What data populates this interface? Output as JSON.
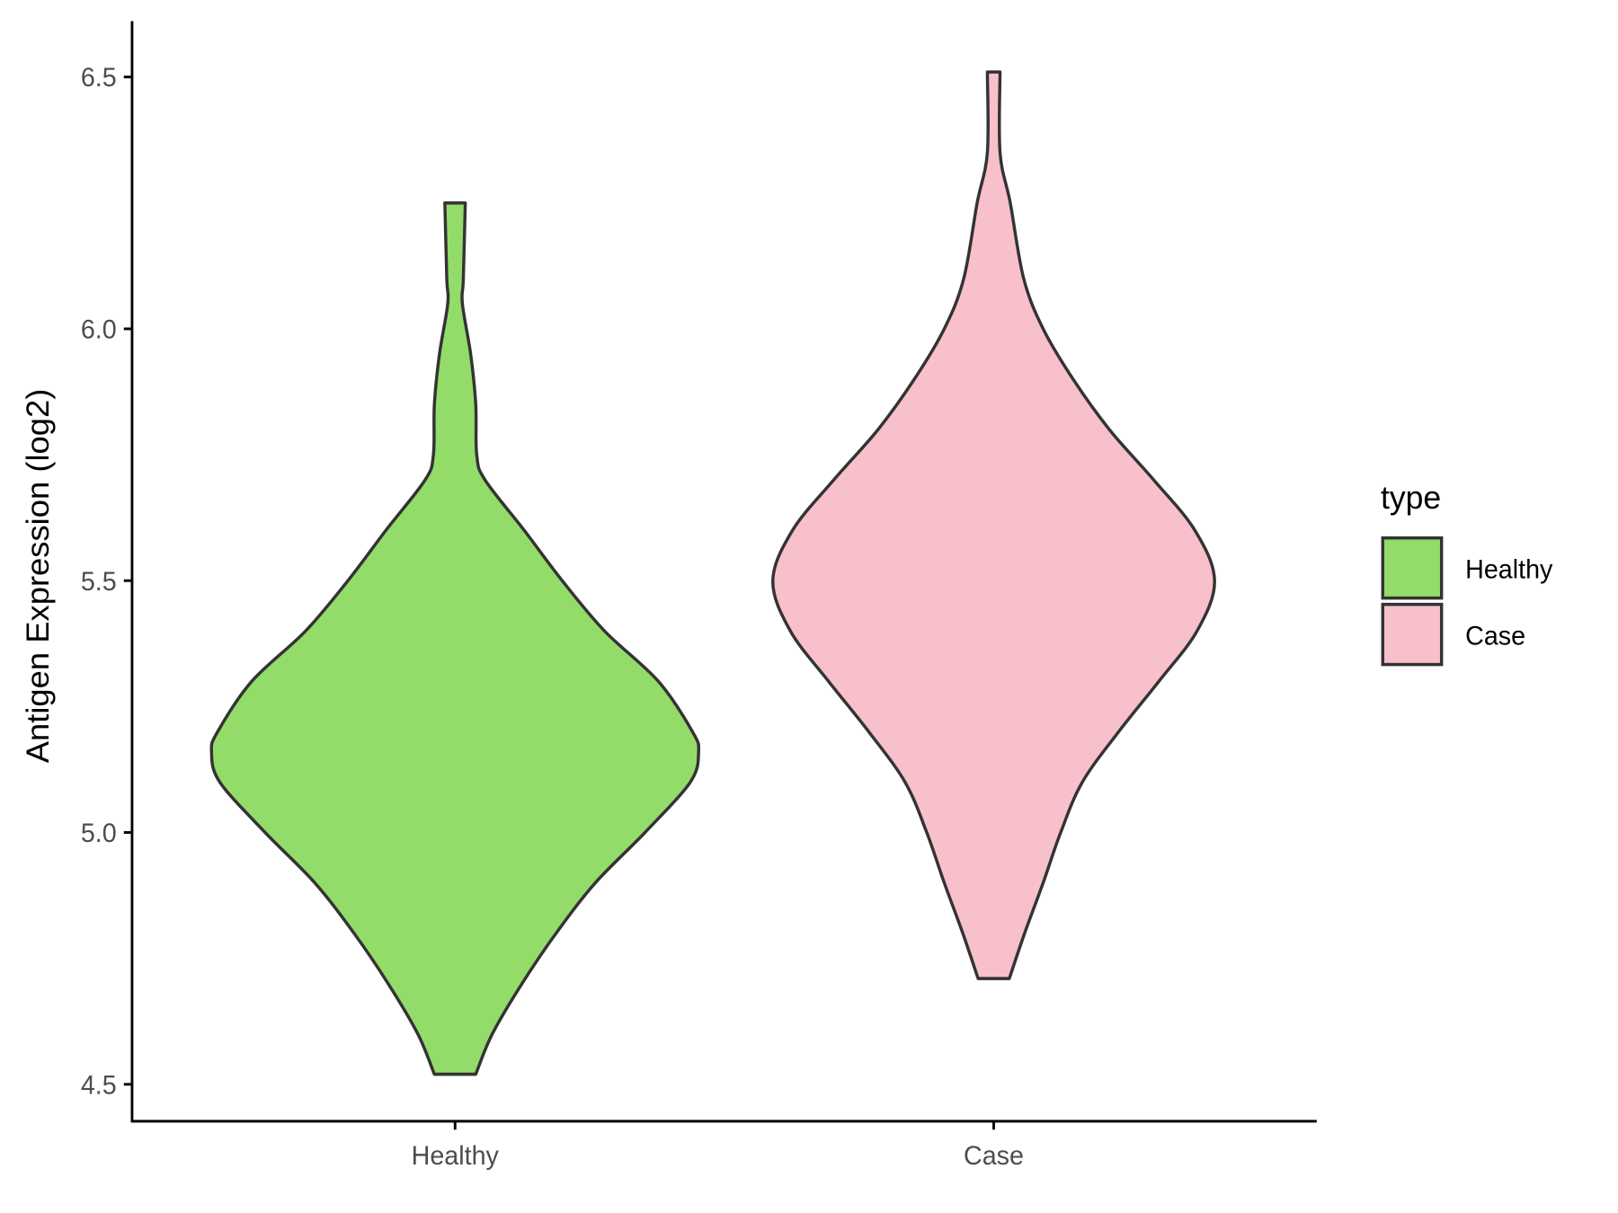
{
  "chart_data": {
    "type": "violin",
    "title": "",
    "xlabel": "",
    "ylabel": "Antigen Expression (log2)",
    "ylim": [
      4.43,
      6.62
    ],
    "yticks": [
      4.5,
      5.0,
      5.5,
      6.0,
      6.5
    ],
    "ytick_labels": [
      "4.5",
      "5.0",
      "5.5",
      "6.0",
      "6.5"
    ],
    "categories": [
      "Healthy",
      "Case"
    ],
    "grid": false,
    "legend": {
      "title": "type",
      "placement": "right",
      "entries": [
        "Healthy",
        "Case"
      ]
    },
    "series": [
      {
        "name": "Healthy",
        "color": "#93DC6A",
        "min": 4.52,
        "max": 6.25,
        "profile_note_units": "y in log2 expression, w = relative half-width (max 1)",
        "profile": [
          [
            6.25,
            0.042
          ],
          [
            6.1,
            0.034
          ],
          [
            6.05,
            0.03
          ],
          [
            5.95,
            0.064
          ],
          [
            5.85,
            0.085
          ],
          [
            5.75,
            0.089
          ],
          [
            5.7,
            0.123
          ],
          [
            5.6,
            0.284
          ],
          [
            5.5,
            0.44
          ],
          [
            5.4,
            0.614
          ],
          [
            5.3,
            0.835
          ],
          [
            5.2,
            0.975
          ],
          [
            5.16,
            1.0
          ],
          [
            5.1,
            0.966
          ],
          [
            5.0,
            0.78
          ],
          [
            4.9,
            0.576
          ],
          [
            4.8,
            0.415
          ],
          [
            4.7,
            0.275
          ],
          [
            4.6,
            0.153
          ],
          [
            4.52,
            0.085
          ]
        ]
      },
      {
        "name": "Case",
        "color": "#F8C0CB",
        "min": 4.71,
        "max": 6.51,
        "profile": [
          [
            6.51,
            0.026
          ],
          [
            6.35,
            0.026
          ],
          [
            6.25,
            0.068
          ],
          [
            6.1,
            0.123
          ],
          [
            6.0,
            0.203
          ],
          [
            5.9,
            0.326
          ],
          [
            5.8,
            0.475
          ],
          [
            5.7,
            0.657
          ],
          [
            5.6,
            0.826
          ],
          [
            5.5,
            0.907
          ],
          [
            5.4,
            0.835
          ],
          [
            5.3,
            0.678
          ],
          [
            5.2,
            0.513
          ],
          [
            5.1,
            0.364
          ],
          [
            5.0,
            0.275
          ],
          [
            4.9,
            0.203
          ],
          [
            4.8,
            0.127
          ],
          [
            4.71,
            0.064
          ]
        ]
      }
    ],
    "outline_color": "#333333"
  }
}
